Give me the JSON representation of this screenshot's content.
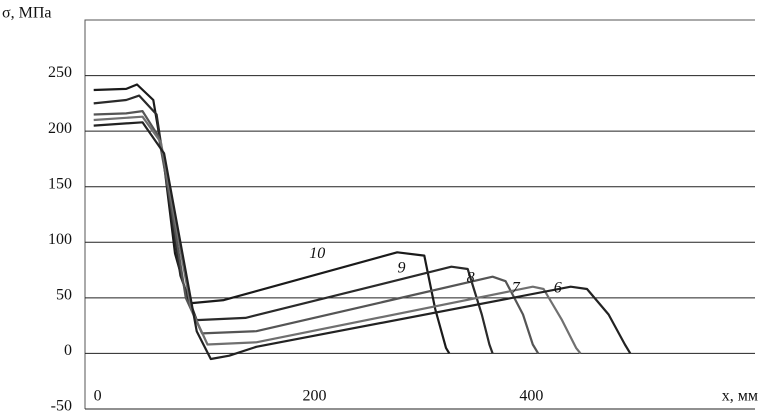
{
  "chart_data": {
    "type": "line",
    "y_label": "σ, МПа",
    "x_label": "x, мм",
    "xlim": [
      -8,
      610
    ],
    "xticks": [
      0,
      200,
      400
    ],
    "ylim": [
      -50,
      300
    ],
    "yticks": [
      -50,
      0,
      50,
      100,
      150,
      200,
      250
    ],
    "grid": true,
    "series": [
      {
        "name": "10",
        "color": "#1a1a1a",
        "x": [
          0,
          30,
          40,
          55,
          65,
          75,
          88,
          120,
          280,
          305,
          315,
          325,
          328
        ],
        "values": [
          237,
          238,
          242,
          228,
          170,
          90,
          45,
          48,
          91,
          88,
          40,
          5,
          0
        ]
      },
      {
        "name": "9",
        "color": "#2a2a2a",
        "x": [
          0,
          30,
          42,
          58,
          68,
          80,
          95,
          140,
          330,
          345,
          358,
          365,
          368
        ],
        "values": [
          225,
          228,
          232,
          215,
          150,
          70,
          30,
          32,
          78,
          76,
          35,
          8,
          0
        ]
      },
      {
        "name": "8",
        "color": "#555555",
        "x": [
          0,
          30,
          45,
          60,
          72,
          85,
          100,
          150,
          368,
          380,
          396,
          405,
          410
        ],
        "values": [
          215,
          216,
          218,
          195,
          130,
          50,
          18,
          20,
          69,
          65,
          35,
          8,
          0
        ]
      },
      {
        "name": "7",
        "color": "#707070",
        "x": [
          0,
          30,
          45,
          62,
          75,
          90,
          105,
          150,
          405,
          415,
          432,
          445,
          449
        ],
        "values": [
          210,
          212,
          213,
          190,
          120,
          40,
          8,
          10,
          60,
          58,
          30,
          5,
          0
        ]
      },
      {
        "name": "6",
        "color": "#222222",
        "x": [
          0,
          30,
          45,
          65,
          80,
          95,
          108,
          125,
          150,
          440,
          455,
          475,
          490,
          495
        ],
        "values": [
          205,
          207,
          208,
          180,
          100,
          20,
          -5,
          -2,
          6,
          60,
          58,
          35,
          8,
          0
        ]
      }
    ]
  }
}
